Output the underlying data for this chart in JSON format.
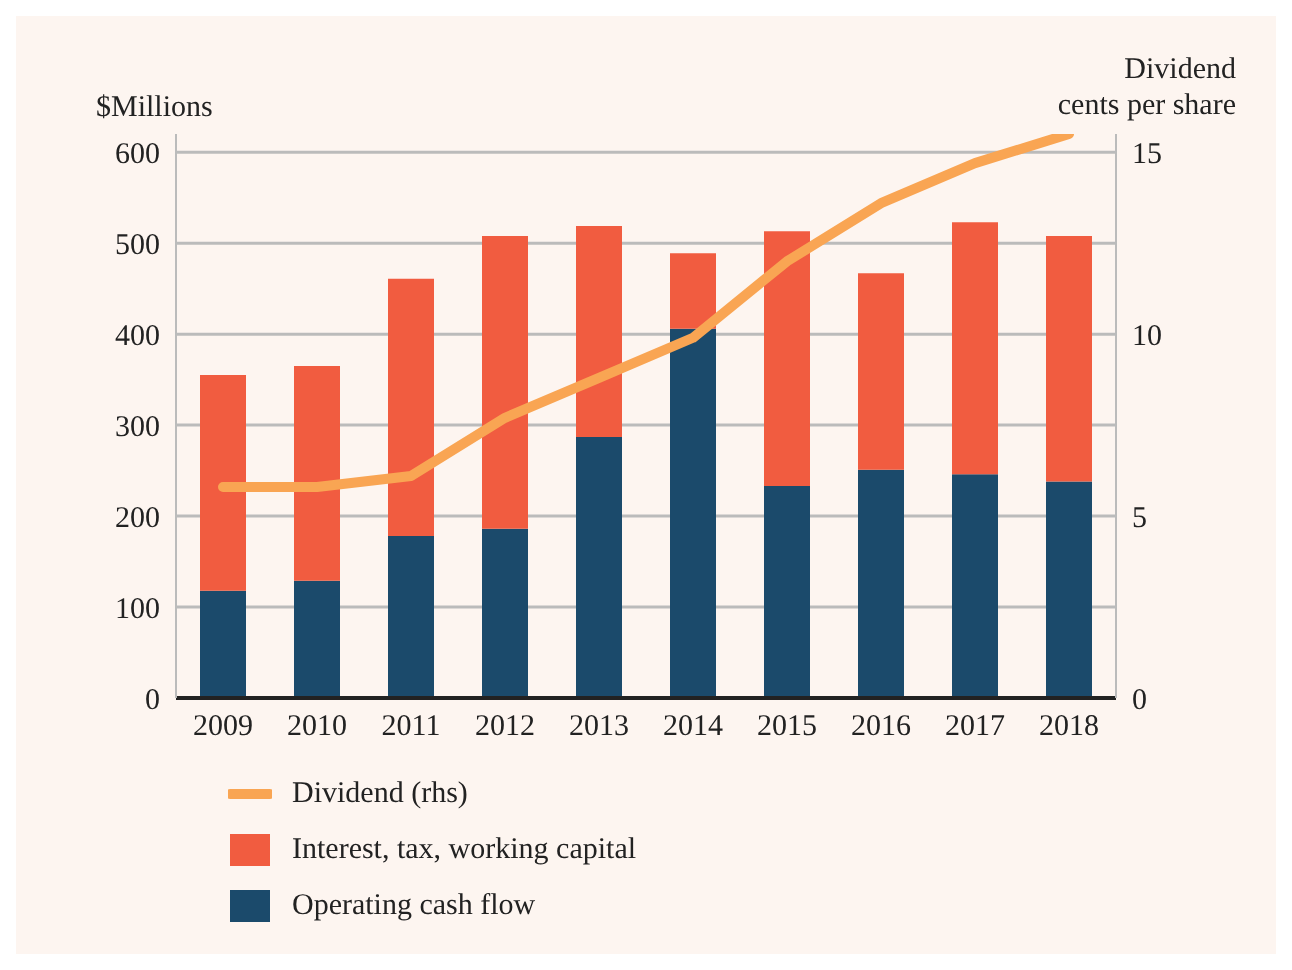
{
  "chart_data": {
    "type": "bar",
    "ylabel": "$Millions",
    "y2label": "Dividend\ncents per share",
    "categories": [
      "2009",
      "2010",
      "2011",
      "2012",
      "2013",
      "2014",
      "2015",
      "2016",
      "2017",
      "2018"
    ],
    "stacked": true,
    "series": [
      {
        "name": "Operating cash flow",
        "color": "#1b4a6b",
        "values": [
          118,
          129,
          178,
          186,
          287,
          406,
          233,
          251,
          246,
          238
        ]
      },
      {
        "name": "Interest, tax, working capital",
        "color": "#f15c40",
        "values": [
          237,
          236,
          283,
          322,
          232,
          83,
          280,
          216,
          277,
          270
        ]
      },
      {
        "name": "Dividend (rhs)",
        "type": "line",
        "axis": "y2",
        "color": "#f9a553",
        "values": [
          5.8,
          5.8,
          6.1,
          7.7,
          8.8,
          9.9,
          12.0,
          13.6,
          14.7,
          15.5
        ]
      }
    ],
    "ylim": [
      0,
      620
    ],
    "yticks": [
      0,
      100,
      200,
      300,
      400,
      500,
      600
    ],
    "y2lim": [
      0,
      15.5
    ],
    "y2ticks": [
      0,
      5,
      10,
      15
    ],
    "grid": "y",
    "legend": "bottom",
    "marker": "none",
    "line_style": "solid"
  }
}
